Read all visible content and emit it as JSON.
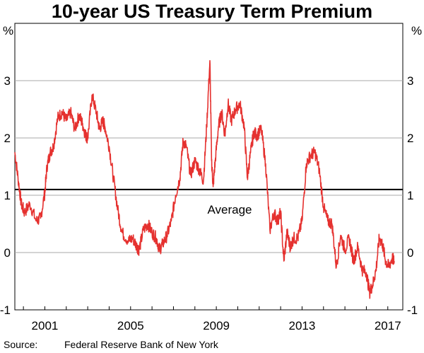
{
  "chart_data": {
    "type": "line",
    "title": "10-year US Treasury Term Premium",
    "y_unit_left": "%",
    "y_unit_right": "%",
    "ylim": [
      -1,
      4
    ],
    "xlim": [
      1999.6,
      2017.7
    ],
    "y_ticks": [
      -1,
      0,
      1,
      2,
      3
    ],
    "x_ticks": [
      2001,
      2005,
      2009,
      2013,
      2017
    ],
    "x_tick_labels": [
      "2001",
      "2005",
      "2009",
      "2013",
      "2017"
    ],
    "grid": true,
    "series": [
      {
        "name": "Term premium",
        "color": "#e5312f",
        "x": [
          1999.6,
          1999.75,
          1999.9,
          2000.05,
          2000.3,
          2000.6,
          2000.8,
          2001.0,
          2001.1,
          2001.25,
          2001.4,
          2001.6,
          2001.8,
          2002.0,
          2002.2,
          2002.4,
          2002.6,
          2002.75,
          2002.9,
          2003.0,
          2003.2,
          2003.4,
          2003.55,
          2003.7,
          2003.8,
          2004.0,
          2004.2,
          2004.4,
          2004.6,
          2004.9,
          2005.1,
          2005.3,
          2005.4,
          2005.6,
          2005.8,
          2006.0,
          2006.2,
          2006.35,
          2006.5,
          2006.7,
          2006.9,
          2007.1,
          2007.3,
          2007.45,
          2007.6,
          2007.8,
          2008.0,
          2008.2,
          2008.4,
          2008.55,
          2008.7,
          2008.78,
          2008.85,
          2008.95,
          2009.1,
          2009.25,
          2009.4,
          2009.55,
          2009.7,
          2009.9,
          2010.1,
          2010.3,
          2010.45,
          2010.6,
          2010.75,
          2010.9,
          2011.1,
          2011.3,
          2011.5,
          2011.7,
          2011.85,
          2012.0,
          2012.15,
          2012.3,
          2012.45,
          2012.6,
          2012.8,
          2013.0,
          2013.2,
          2013.4,
          2013.6,
          2013.8,
          2014.0,
          2014.2,
          2014.4,
          2014.6,
          2014.8,
          2015.0,
          2015.2,
          2015.4,
          2015.6,
          2015.8,
          2016.0,
          2016.15,
          2016.3,
          2016.45,
          2016.6,
          2016.75,
          2016.9,
          2017.05,
          2017.2,
          2017.3
        ],
        "values": [
          1.75,
          1.3,
          0.85,
          0.7,
          0.85,
          0.55,
          0.6,
          1.05,
          1.5,
          1.75,
          1.85,
          2.35,
          2.45,
          2.3,
          2.45,
          2.15,
          2.4,
          2.25,
          2.05,
          2.0,
          2.75,
          2.45,
          2.15,
          2.3,
          2.2,
          1.85,
          1.3,
          0.75,
          0.35,
          0.2,
          0.25,
          0.1,
          0.05,
          0.4,
          0.5,
          0.35,
          0.25,
          0.05,
          0.15,
          0.3,
          0.55,
          1.0,
          1.3,
          1.95,
          1.85,
          1.35,
          1.6,
          1.45,
          1.25,
          2.2,
          3.35,
          1.6,
          1.15,
          1.6,
          2.2,
          2.45,
          2.05,
          2.6,
          2.3,
          2.5,
          2.6,
          2.2,
          1.3,
          1.75,
          2.1,
          2.05,
          2.15,
          1.55,
          0.4,
          0.7,
          0.55,
          0.7,
          -0.15,
          0.35,
          0.1,
          0.25,
          0.25,
          0.55,
          1.55,
          1.7,
          1.75,
          1.45,
          0.8,
          0.55,
          0.5,
          -0.25,
          0.3,
          0.05,
          0.25,
          -0.15,
          0.1,
          -0.3,
          -0.35,
          -0.7,
          -0.55,
          -0.3,
          0.25,
          0.15,
          -0.15,
          -0.25,
          -0.1,
          -0.15
        ]
      }
    ],
    "reference_line": {
      "label": "Average",
      "value": 1.1
    },
    "source_label": "Source:",
    "source_text": "Federal Reserve Bank of New York"
  }
}
